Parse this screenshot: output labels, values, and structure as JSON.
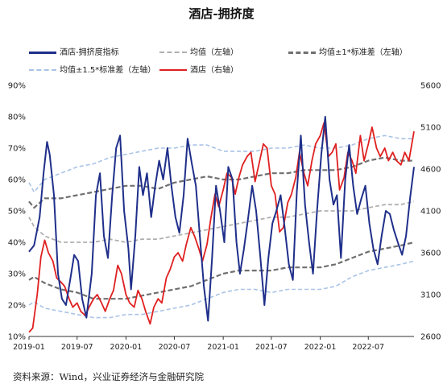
{
  "title": "酒店-拥挤度",
  "source": "资料来源：Wind，兴业证券经济与金融研究院",
  "colors": {
    "crowd": "#1f2f8a",
    "hotel": "#e02020",
    "mean": "#b0b0b0",
    "std1": "#707070",
    "std15": "#a9c3e6"
  },
  "legend": [
    {
      "label": "酒店-拥挤度指标",
      "color": "#1f2f8a",
      "style": "solid"
    },
    {
      "label": "均值（左轴）",
      "color": "#b0b0b0",
      "style": "dashed"
    },
    {
      "label": "均值±1*标准差（左轴）",
      "color": "#707070",
      "style": "dashed"
    },
    {
      "label": "均值±1.5*标准差（左轴）",
      "color": "#a9c3e6",
      "style": "dashed"
    },
    {
      "label": "酒店（右轴）",
      "color": "#e02020",
      "style": "solid"
    }
  ],
  "chart_data": {
    "type": "line",
    "x_ticks": [
      "2019-01",
      "2019-07",
      "2020-01",
      "2020-07",
      "2021-01",
      "2021-07",
      "2022-01",
      "2022-07"
    ],
    "x_range": [
      "2019-01-01",
      "2022-12-20"
    ],
    "y_left_ticks": [
      "10%",
      "20%",
      "30%",
      "40%",
      "50%",
      "60%",
      "70%",
      "80%",
      "90%"
    ],
    "y_left_range": [
      10,
      90
    ],
    "y_right_ticks": [
      "2600",
      "3100",
      "3600",
      "4100",
      "4600",
      "5100",
      "5600"
    ],
    "y_right_range": [
      2600,
      5600
    ],
    "series": [
      {
        "name": "酒店-拥挤度指标",
        "axis": "left",
        "x": [
          "2019-01-01",
          "2019-01-20",
          "2019-02-10",
          "2019-02-25",
          "2019-03-10",
          "2019-03-20",
          "2019-04-05",
          "2019-04-20",
          "2019-05-05",
          "2019-05-20",
          "2019-06-05",
          "2019-06-20",
          "2019-07-05",
          "2019-07-20",
          "2019-08-05",
          "2019-08-25",
          "2019-09-10",
          "2019-09-25",
          "2019-10-10",
          "2019-10-25",
          "2019-11-10",
          "2019-11-25",
          "2019-12-10",
          "2019-12-25",
          "2020-01-10",
          "2020-01-20",
          "2020-02-05",
          "2020-02-20",
          "2020-03-05",
          "2020-03-20",
          "2020-04-05",
          "2020-04-20",
          "2020-05-05",
          "2020-05-20",
          "2020-06-05",
          "2020-06-20",
          "2020-07-05",
          "2020-07-20",
          "2020-08-05",
          "2020-08-20",
          "2020-09-05",
          "2020-09-20",
          "2020-10-05",
          "2020-10-20",
          "2020-11-05",
          "2020-11-20",
          "2020-12-05",
          "2020-12-20",
          "2021-01-05",
          "2021-01-20",
          "2021-02-05",
          "2021-02-20",
          "2021-03-05",
          "2021-03-20",
          "2021-04-05",
          "2021-04-20",
          "2021-05-05",
          "2021-05-20",
          "2021-06-05",
          "2021-06-20",
          "2021-07-05",
          "2021-07-20",
          "2021-08-05",
          "2021-08-20",
          "2021-09-05",
          "2021-09-20",
          "2021-10-05",
          "2021-10-20",
          "2021-11-05",
          "2021-11-20",
          "2021-12-05",
          "2021-12-20",
          "2022-01-05",
          "2022-01-20",
          "2022-02-05",
          "2022-02-20",
          "2022-03-05",
          "2022-03-20",
          "2022-04-05",
          "2022-04-20",
          "2022-05-05",
          "2022-05-20",
          "2022-06-05",
          "2022-06-20",
          "2022-07-05",
          "2022-07-20",
          "2022-08-05",
          "2022-08-20",
          "2022-09-05",
          "2022-09-20",
          "2022-10-05",
          "2022-10-20",
          "2022-11-05",
          "2022-11-20",
          "2022-12-05",
          "2022-12-20"
        ],
        "values": [
          37,
          39,
          48,
          62,
          72,
          68,
          55,
          30,
          22,
          20,
          28,
          36,
          34,
          22,
          16,
          30,
          55,
          62,
          42,
          35,
          55,
          70,
          74,
          50,
          38,
          25,
          42,
          64,
          55,
          62,
          48,
          58,
          66,
          60,
          70,
          58,
          48,
          43,
          55,
          73,
          65,
          58,
          42,
          26,
          15,
          35,
          58,
          50,
          40,
          64,
          60,
          40,
          30,
          38,
          48,
          58,
          50,
          36,
          20,
          35,
          46,
          50,
          55,
          45,
          33,
          28,
          56,
          74,
          52,
          40,
          30,
          50,
          68,
          80,
          60,
          52,
          55,
          35,
          60,
          71,
          58,
          49,
          54,
          58,
          46,
          38,
          33,
          42,
          50,
          49,
          44,
          40,
          36,
          42,
          54,
          64
        ]
      },
      {
        "name": "均值（左轴）",
        "axis": "left",
        "x": [
          "2019-01-01",
          "2019-01-20",
          "2019-03-01",
          "2019-05-01",
          "2019-07-01",
          "2019-09-01",
          "2019-11-01",
          "2020-01-01",
          "2020-03-01",
          "2020-05-01",
          "2020-07-01",
          "2020-09-01",
          "2020-11-01",
          "2021-01-01",
          "2021-03-01",
          "2021-05-01",
          "2021-07-01",
          "2021-09-01",
          "2021-11-01",
          "2022-01-01",
          "2022-03-01",
          "2022-05-01",
          "2022-07-01",
          "2022-09-01",
          "2022-11-01",
          "2022-12-20"
        ],
        "values": [
          48,
          45,
          42,
          40,
          40,
          40,
          41,
          40,
          41,
          41,
          42,
          43,
          44,
          45,
          46,
          47,
          48,
          48,
          49,
          50,
          50,
          50,
          51,
          52,
          52,
          53
        ]
      },
      {
        "name": "均值+1*标准差（左轴）",
        "axis": "left",
        "x": [
          "2019-01-01",
          "2019-01-20",
          "2019-03-01",
          "2019-05-01",
          "2019-07-01",
          "2019-09-01",
          "2019-11-01",
          "2020-01-01",
          "2020-03-01",
          "2020-05-01",
          "2020-07-01",
          "2020-09-01",
          "2020-11-01",
          "2021-01-01",
          "2021-03-01",
          "2021-05-01",
          "2021-07-01",
          "2021-09-01",
          "2021-11-01",
          "2022-01-01",
          "2022-03-01",
          "2022-05-01",
          "2022-07-01",
          "2022-09-01",
          "2022-11-01",
          "2022-12-20"
        ],
        "values": [
          53,
          51,
          54,
          54,
          55,
          56,
          57,
          58,
          58,
          57,
          59,
          60,
          61,
          60,
          60,
          61,
          62,
          62,
          63,
          63,
          63,
          64,
          66,
          67,
          66,
          66
        ]
      },
      {
        "name": "均值-1*标准差（左轴）",
        "axis": "left",
        "x": [
          "2019-01-01",
          "2019-01-20",
          "2019-03-01",
          "2019-05-01",
          "2019-07-01",
          "2019-09-01",
          "2019-11-01",
          "2020-01-01",
          "2020-03-01",
          "2020-05-01",
          "2020-07-01",
          "2020-09-01",
          "2020-11-01",
          "2021-01-01",
          "2021-03-01",
          "2021-05-01",
          "2021-07-01",
          "2021-09-01",
          "2021-11-01",
          "2022-01-01",
          "2022-03-01",
          "2022-05-01",
          "2022-07-01",
          "2022-09-01",
          "2022-11-01",
          "2022-12-20"
        ],
        "values": [
          28,
          29,
          27,
          25,
          24,
          22,
          22,
          22,
          23,
          24,
          25,
          26,
          28,
          30,
          31,
          31,
          31,
          32,
          32,
          32,
          33,
          35,
          37,
          38,
          39,
          40
        ]
      },
      {
        "name": "均值+1.5*标准差（左轴）",
        "axis": "left",
        "x": [
          "2019-01-01",
          "2019-01-20",
          "2019-03-01",
          "2019-05-01",
          "2019-07-01",
          "2019-09-01",
          "2019-11-01",
          "2020-01-01",
          "2020-03-01",
          "2020-05-01",
          "2020-07-01",
          "2020-09-01",
          "2020-11-01",
          "2021-01-01",
          "2021-03-01",
          "2021-05-01",
          "2021-07-01",
          "2021-09-01",
          "2021-11-01",
          "2022-01-01",
          "2022-03-01",
          "2022-05-01",
          "2022-07-01",
          "2022-09-01",
          "2022-11-01",
          "2022-12-20"
        ],
        "values": [
          59,
          56,
          60,
          62,
          64,
          65,
          67,
          68,
          69,
          70,
          70,
          71,
          71,
          69,
          69,
          69,
          70,
          70,
          71,
          70,
          70,
          71,
          73,
          74,
          73,
          73
        ]
      },
      {
        "name": "均值-1.5*标准差（左轴）",
        "axis": "left",
        "x": [
          "2019-01-01",
          "2019-01-20",
          "2019-03-01",
          "2019-05-01",
          "2019-07-01",
          "2019-09-01",
          "2019-11-01",
          "2020-01-01",
          "2020-03-01",
          "2020-05-01",
          "2020-07-01",
          "2020-09-01",
          "2020-11-01",
          "2021-01-01",
          "2021-03-01",
          "2021-05-01",
          "2021-07-01",
          "2021-09-01",
          "2021-11-01",
          "2022-01-01",
          "2022-03-01",
          "2022-05-01",
          "2022-07-01",
          "2022-09-01",
          "2022-11-01",
          "2022-12-20"
        ],
        "values": [
          20,
          21,
          19,
          18,
          17,
          16,
          16,
          17,
          17,
          18,
          19,
          20,
          22,
          24,
          25,
          25,
          24,
          25,
          25,
          25,
          26,
          29,
          31,
          32,
          33,
          34
        ]
      },
      {
        "name": "酒店（右轴）",
        "axis": "right",
        "x": [
          "2019-01-01",
          "2019-01-15",
          "2019-02-01",
          "2019-02-15",
          "2019-03-01",
          "2019-03-15",
          "2019-04-01",
          "2019-04-15",
          "2019-05-01",
          "2019-05-15",
          "2019-06-01",
          "2019-06-15",
          "2019-07-01",
          "2019-07-15",
          "2019-08-01",
          "2019-08-15",
          "2019-09-01",
          "2019-09-15",
          "2019-10-01",
          "2019-10-15",
          "2019-11-01",
          "2019-11-15",
          "2019-12-01",
          "2019-12-15",
          "2020-01-01",
          "2020-01-15",
          "2020-02-01",
          "2020-02-15",
          "2020-03-01",
          "2020-03-15",
          "2020-04-01",
          "2020-04-15",
          "2020-05-01",
          "2020-05-15",
          "2020-06-01",
          "2020-06-15",
          "2020-07-01",
          "2020-07-15",
          "2020-08-01",
          "2020-08-15",
          "2020-09-01",
          "2020-09-15",
          "2020-10-01",
          "2020-10-15",
          "2020-11-01",
          "2020-11-15",
          "2020-12-01",
          "2020-12-15",
          "2021-01-01",
          "2021-01-15",
          "2021-02-01",
          "2021-02-15",
          "2021-03-01",
          "2021-03-15",
          "2021-04-01",
          "2021-04-15",
          "2021-05-01",
          "2021-05-15",
          "2021-06-01",
          "2021-06-15",
          "2021-07-01",
          "2021-07-15",
          "2021-08-01",
          "2021-08-15",
          "2021-09-01",
          "2021-09-15",
          "2021-10-01",
          "2021-10-15",
          "2021-11-01",
          "2021-11-15",
          "2021-12-01",
          "2021-12-15",
          "2022-01-01",
          "2022-01-15",
          "2022-02-01",
          "2022-02-15",
          "2022-03-01",
          "2022-03-15",
          "2022-04-01",
          "2022-04-15",
          "2022-05-01",
          "2022-05-15",
          "2022-06-01",
          "2022-06-15",
          "2022-07-01",
          "2022-07-15",
          "2022-08-01",
          "2022-08-15",
          "2022-09-01",
          "2022-09-15",
          "2022-10-01",
          "2022-10-15",
          "2022-11-01",
          "2022-11-15",
          "2022-12-01",
          "2022-12-20"
        ],
        "values": [
          2650,
          2700,
          3100,
          3550,
          3750,
          3600,
          3500,
          3300,
          3250,
          3200,
          3050,
          2950,
          3000,
          2900,
          2850,
          2950,
          3050,
          3100,
          3000,
          2900,
          3050,
          3150,
          3450,
          3350,
          3100,
          3000,
          2950,
          3150,
          3050,
          2900,
          2750,
          2950,
          3050,
          3000,
          3300,
          3400,
          3550,
          3600,
          3500,
          3700,
          3900,
          3800,
          3650,
          3500,
          3700,
          4000,
          4300,
          4150,
          4350,
          4550,
          4500,
          4300,
          4500,
          4650,
          4750,
          4800,
          4450,
          4650,
          4900,
          4850,
          4400,
          4300,
          3850,
          3900,
          4200,
          4300,
          4500,
          4800,
          4550,
          4400,
          4700,
          4900,
          5000,
          5150,
          4750,
          4800,
          4900,
          4350,
          4500,
          4800,
          4700,
          4550,
          5000,
          4700,
          4900,
          5100,
          4850,
          4750,
          4850,
          4700,
          4800,
          4700,
          4650,
          4800,
          4700,
          5050
        ]
      }
    ]
  }
}
